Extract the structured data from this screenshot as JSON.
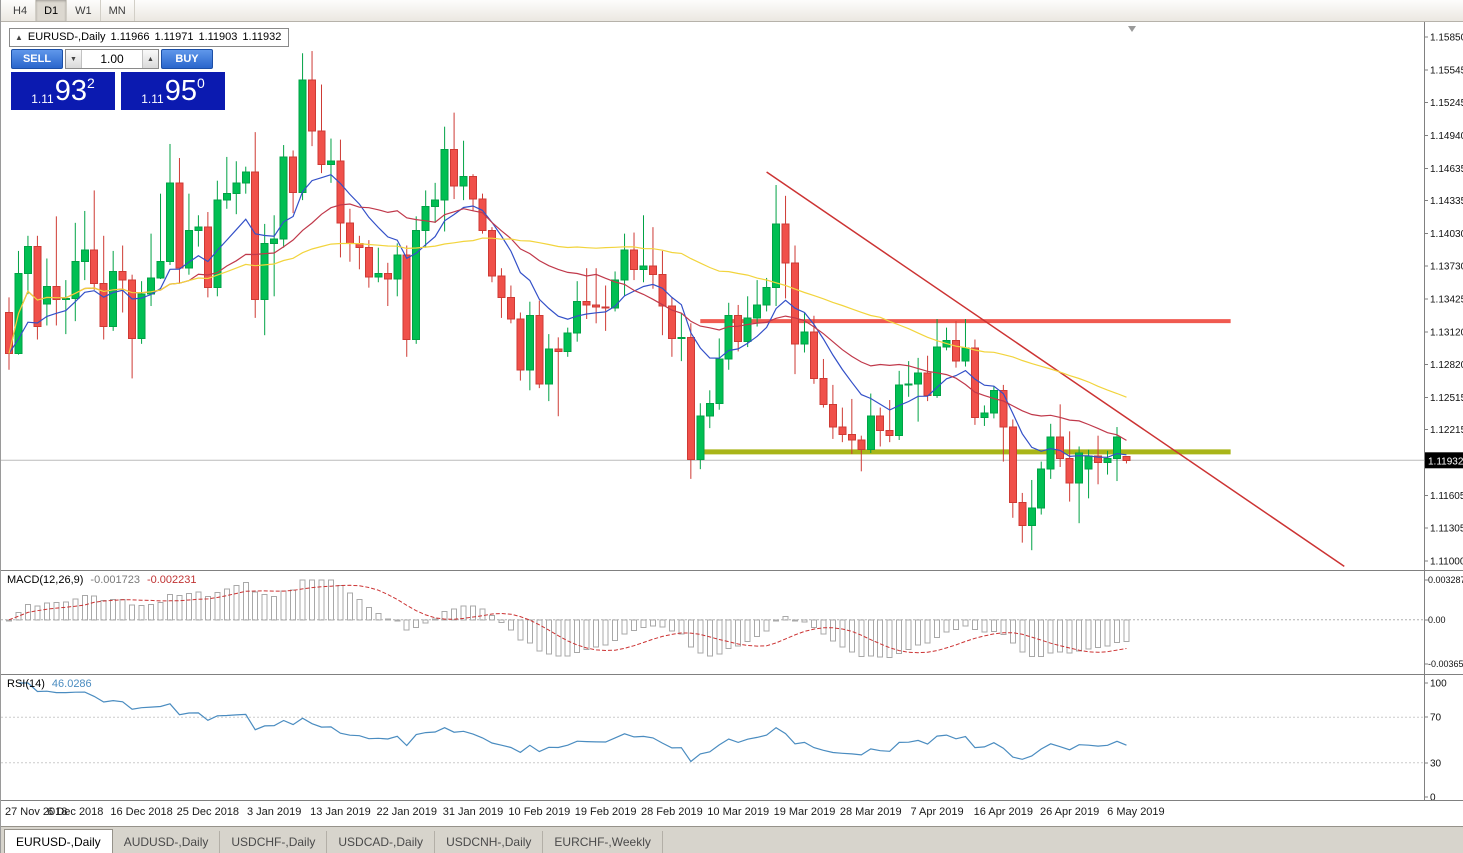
{
  "topbar": {
    "timeframes": [
      "H4",
      "D1",
      "W1",
      "MN"
    ],
    "active_timeframe": "D1"
  },
  "chart_header": {
    "collapse_arrow": "▲",
    "symbol_label": "EURUSD-,Daily",
    "open": "1.11966",
    "high": "1.11971",
    "low": "1.11903",
    "close": "1.11932"
  },
  "trade_panel": {
    "sell_label": "SELL",
    "buy_label": "BUY",
    "volume": "1.00",
    "spin_down": "▼",
    "spin_up": "▲",
    "bid": {
      "prefix": "1.11",
      "pips": "93",
      "pipette": "2"
    },
    "ask": {
      "prefix": "1.11",
      "pips": "95",
      "pipette": "0"
    }
  },
  "price_axis": {
    "labels": [
      "1.15850",
      "1.15545",
      "1.15245",
      "1.14940",
      "1.14635",
      "1.14335",
      "1.14030",
      "1.13730",
      "1.13425",
      "1.13120",
      "1.12820",
      "1.12515",
      "1.12215",
      "1.11605",
      "1.11305",
      "1.11000"
    ],
    "current_price": "1.11932"
  },
  "macd_panel": {
    "label": "MACD(12,26,9)",
    "value_main": "-0.001723",
    "value_signal": "-0.002231",
    "axis_labels": [
      "0.003287",
      "0.00",
      "-0.003659"
    ]
  },
  "rsi_panel": {
    "label": "RSI(14)",
    "value": "46.0286",
    "axis_labels": [
      "100",
      "70",
      "30",
      "0"
    ]
  },
  "date_axis": [
    "27 Nov 2018",
    "6 Dec 2018",
    "16 Dec 2018",
    "25 Dec 2018",
    "3 Jan 2019",
    "13 Jan 2019",
    "22 Jan 2019",
    "31 Jan 2019",
    "10 Feb 2019",
    "19 Feb 2019",
    "28 Feb 2019",
    "10 Mar 2019",
    "19 Mar 2019",
    "28 Mar 2019",
    "7 Apr 2019",
    "16 Apr 2019",
    "26 Apr 2019",
    "6 May 2019"
  ],
  "tabs": [
    {
      "label": "EURUSD-,Daily",
      "active": true
    },
    {
      "label": "AUDUSD-,Daily",
      "active": false
    },
    {
      "label": "USDCHF-,Daily",
      "active": false
    },
    {
      "label": "USDCAD-,Daily",
      "active": false
    },
    {
      "label": "USDCNH-,Daily",
      "active": false
    },
    {
      "label": "EURCHF-,Weekly",
      "active": false
    }
  ],
  "colors": {
    "price_box_bg": "#0b1ab0",
    "trade_button": "#2a66cc",
    "price_badge_bg": "#000000",
    "resistance": "#f05a50",
    "support": "#a9b519",
    "trendline": "#cc3333",
    "rsi_line": "#4a8cc0",
    "macd_signal": "#cc3333",
    "macd_histogram": "#a8a8a8"
  },
  "chart_data": {
    "type": "candlestick",
    "title": "EURUSD-,Daily",
    "ylim": [
      1.11,
      1.1585
    ],
    "colors": {
      "up_fill": "#00bf53",
      "up_border": "#00a245",
      "down_fill": "#f0504a",
      "down_border": "#ce3a34"
    },
    "ohlc": [
      [
        1.133,
        1.1344,
        1.1277,
        1.1292
      ],
      [
        1.1292,
        1.1387,
        1.1291,
        1.1366
      ],
      [
        1.1366,
        1.1401,
        1.1347,
        1.1391
      ],
      [
        1.1391,
        1.1401,
        1.1305,
        1.1317
      ],
      [
        1.1338,
        1.138,
        1.1318,
        1.1354
      ],
      [
        1.1354,
        1.1419,
        1.1318,
        1.1342
      ],
      [
        1.1342,
        1.136,
        1.131,
        1.1343
      ],
      [
        1.1343,
        1.1413,
        1.1322,
        1.1377
      ],
      [
        1.1377,
        1.1424,
        1.136,
        1.1388
      ],
      [
        1.1388,
        1.1443,
        1.1351,
        1.1357
      ],
      [
        1.1357,
        1.1401,
        1.1305,
        1.1317
      ],
      [
        1.1317,
        1.1387,
        1.1313,
        1.1368
      ],
      [
        1.1368,
        1.1392,
        1.133,
        1.136
      ],
      [
        1.136,
        1.1365,
        1.1269,
        1.1306
      ],
      [
        1.1306,
        1.1359,
        1.1301,
        1.1347
      ],
      [
        1.1347,
        1.1403,
        1.1336,
        1.1362
      ],
      [
        1.1362,
        1.144,
        1.1361,
        1.1377
      ],
      [
        1.1377,
        1.1486,
        1.1374,
        1.145
      ],
      [
        1.145,
        1.1473,
        1.1357,
        1.1371
      ],
      [
        1.1371,
        1.144,
        1.1365,
        1.1406
      ],
      [
        1.1406,
        1.142,
        1.1391,
        1.1409
      ],
      [
        1.1409,
        1.1423,
        1.1344,
        1.1353
      ],
      [
        1.1353,
        1.1452,
        1.1345,
        1.1434
      ],
      [
        1.1434,
        1.1474,
        1.1426,
        1.144
      ],
      [
        1.144,
        1.147,
        1.1421,
        1.145
      ],
      [
        1.145,
        1.1465,
        1.144,
        1.146
      ],
      [
        1.146,
        1.1497,
        1.1325,
        1.1342
      ],
      [
        1.1342,
        1.1412,
        1.1309,
        1.1394
      ],
      [
        1.1394,
        1.142,
        1.1345,
        1.1398
      ],
      [
        1.1398,
        1.1485,
        1.139,
        1.1474
      ],
      [
        1.1474,
        1.148,
        1.1422,
        1.1441
      ],
      [
        1.1441,
        1.157,
        1.1434,
        1.1545
      ],
      [
        1.1545,
        1.1572,
        1.1484,
        1.1498
      ],
      [
        1.1498,
        1.1541,
        1.1459,
        1.1467
      ],
      [
        1.1467,
        1.1491,
        1.145,
        1.147
      ],
      [
        1.147,
        1.149,
        1.1381,
        1.1413
      ],
      [
        1.1413,
        1.1426,
        1.1377,
        1.1394
      ],
      [
        1.1394,
        1.1401,
        1.137,
        1.139
      ],
      [
        1.139,
        1.1397,
        1.1353,
        1.1363
      ],
      [
        1.1363,
        1.139,
        1.1358,
        1.1366
      ],
      [
        1.1366,
        1.1376,
        1.1336,
        1.1361
      ],
      [
        1.1361,
        1.1394,
        1.1345,
        1.1383
      ],
      [
        1.1383,
        1.1392,
        1.1289,
        1.1305
      ],
      [
        1.1305,
        1.1419,
        1.1301,
        1.1406
      ],
      [
        1.1406,
        1.1443,
        1.139,
        1.1428
      ],
      [
        1.1428,
        1.145,
        1.1413,
        1.1434
      ],
      [
        1.1434,
        1.1502,
        1.1405,
        1.1481
      ],
      [
        1.1481,
        1.1515,
        1.1435,
        1.1447
      ],
      [
        1.1447,
        1.1489,
        1.1434,
        1.1456
      ],
      [
        1.1456,
        1.1458,
        1.1424,
        1.1435
      ],
      [
        1.1435,
        1.144,
        1.1403,
        1.1406
      ],
      [
        1.1406,
        1.1409,
        1.1358,
        1.1364
      ],
      [
        1.1364,
        1.1371,
        1.1325,
        1.1344
      ],
      [
        1.1344,
        1.1355,
        1.132,
        1.1324
      ],
      [
        1.1324,
        1.133,
        1.1267,
        1.1277
      ],
      [
        1.1277,
        1.134,
        1.1258,
        1.1327
      ],
      [
        1.1327,
        1.1341,
        1.126,
        1.1264
      ],
      [
        1.1264,
        1.131,
        1.1248,
        1.1296
      ],
      [
        1.1296,
        1.1307,
        1.1234,
        1.1294
      ],
      [
        1.1294,
        1.1316,
        1.1289,
        1.1311
      ],
      [
        1.1311,
        1.1359,
        1.1303,
        1.134
      ],
      [
        1.134,
        1.1371,
        1.1324,
        1.1337
      ],
      [
        1.1337,
        1.1371,
        1.132,
        1.1335
      ],
      [
        1.1335,
        1.1355,
        1.1313,
        1.1334
      ],
      [
        1.1334,
        1.1368,
        1.1331,
        1.136
      ],
      [
        1.136,
        1.1403,
        1.1345,
        1.1388
      ],
      [
        1.1388,
        1.1404,
        1.136,
        1.137
      ],
      [
        1.137,
        1.142,
        1.1358,
        1.1373
      ],
      [
        1.1373,
        1.1409,
        1.1352,
        1.1365
      ],
      [
        1.1365,
        1.1387,
        1.1309,
        1.1336
      ],
      [
        1.1336,
        1.1344,
        1.1289,
        1.1306
      ],
      [
        1.1306,
        1.1329,
        1.1285,
        1.1307
      ],
      [
        1.1307,
        1.132,
        1.1176,
        1.1194
      ],
      [
        1.1194,
        1.1246,
        1.1185,
        1.1234
      ],
      [
        1.1234,
        1.1258,
        1.1223,
        1.1246
      ],
      [
        1.1246,
        1.1306,
        1.124,
        1.1287
      ],
      [
        1.1287,
        1.1339,
        1.1277,
        1.1327
      ],
      [
        1.1327,
        1.1337,
        1.1294,
        1.1303
      ],
      [
        1.1303,
        1.1345,
        1.1298,
        1.1325
      ],
      [
        1.1325,
        1.136,
        1.1317,
        1.1337
      ],
      [
        1.1337,
        1.1362,
        1.1331,
        1.1353
      ],
      [
        1.1353,
        1.1448,
        1.1336,
        1.1412
      ],
      [
        1.1412,
        1.1438,
        1.1343,
        1.1376
      ],
      [
        1.1376,
        1.1392,
        1.1273,
        1.1301
      ],
      [
        1.1301,
        1.133,
        1.1293,
        1.1312
      ],
      [
        1.1312,
        1.1327,
        1.1264,
        1.1269
      ],
      [
        1.1269,
        1.1287,
        1.1242,
        1.1245
      ],
      [
        1.1245,
        1.1263,
        1.1213,
        1.1224
      ],
      [
        1.1224,
        1.1242,
        1.121,
        1.1217
      ],
      [
        1.1217,
        1.125,
        1.1199,
        1.1212
      ],
      [
        1.1212,
        1.1216,
        1.1183,
        1.1203
      ],
      [
        1.1203,
        1.1255,
        1.12,
        1.1234
      ],
      [
        1.1234,
        1.1242,
        1.1206,
        1.1221
      ],
      [
        1.1221,
        1.1249,
        1.121,
        1.1216
      ],
      [
        1.1216,
        1.1276,
        1.1212,
        1.1263
      ],
      [
        1.1263,
        1.1285,
        1.1252,
        1.1264
      ],
      [
        1.1264,
        1.1288,
        1.1229,
        1.1274
      ],
      [
        1.1274,
        1.129,
        1.1248,
        1.1253
      ],
      [
        1.1253,
        1.1324,
        1.1251,
        1.1298
      ],
      [
        1.1298,
        1.1316,
        1.1295,
        1.1304
      ],
      [
        1.1304,
        1.1322,
        1.1279,
        1.1285
      ],
      [
        1.1285,
        1.1324,
        1.128,
        1.1297
      ],
      [
        1.1297,
        1.1305,
        1.1226,
        1.1233
      ],
      [
        1.1233,
        1.1244,
        1.1225,
        1.1237
      ],
      [
        1.1237,
        1.1262,
        1.1232,
        1.1258
      ],
      [
        1.1258,
        1.1263,
        1.1192,
        1.1224
      ],
      [
        1.1224,
        1.1231,
        1.114,
        1.1154
      ],
      [
        1.1154,
        1.1163,
        1.1117,
        1.1133
      ],
      [
        1.1133,
        1.1175,
        1.111,
        1.1149
      ],
      [
        1.1149,
        1.1192,
        1.1143,
        1.1185
      ],
      [
        1.1185,
        1.1227,
        1.1176,
        1.1215
      ],
      [
        1.1215,
        1.1245,
        1.1187,
        1.1195
      ],
      [
        1.1195,
        1.122,
        1.1155,
        1.1172
      ],
      [
        1.1172,
        1.1206,
        1.1135,
        1.12
      ],
      [
        1.1185,
        1.1203,
        1.1158,
        1.1197
      ],
      [
        1.1197,
        1.1216,
        1.1171,
        1.1191
      ],
      [
        1.1191,
        1.1202,
        1.118,
        1.1195
      ],
      [
        1.1195,
        1.1224,
        1.1174,
        1.1215
      ],
      [
        1.11966,
        1.11971,
        1.11903,
        1.11932
      ]
    ],
    "moving_averages": [
      {
        "name": "fast",
        "method": "ema",
        "period": 10,
        "color": "#3350c8"
      },
      {
        "name": "medium",
        "method": "sma",
        "period": 20,
        "color": "#c0394b"
      },
      {
        "name": "slow",
        "method": "sma",
        "period": 50,
        "color": "#f2d43d"
      }
    ],
    "objects": {
      "resistance_line": {
        "price": 1.1322,
        "from_index": 73,
        "to_index": 129,
        "color": "#f05a50",
        "width": 4
      },
      "support_line": {
        "price": 1.1201,
        "from_index": 73,
        "to_index": 129,
        "color": "#a9b519",
        "width": 5
      },
      "trendline": {
        "from": {
          "index": 80,
          "price": 1.146
        },
        "to": {
          "index": 141,
          "price": 1.1095
        },
        "color": "#cc3333",
        "width": 1.5
      }
    },
    "indicators": {
      "macd": {
        "fast": 12,
        "slow": 26,
        "signal": 9,
        "ylim": [
          -0.003659,
          0.003287
        ]
      },
      "rsi": {
        "period": 14,
        "levels": [
          30,
          70
        ],
        "ylim": [
          0,
          100
        ]
      }
    }
  }
}
